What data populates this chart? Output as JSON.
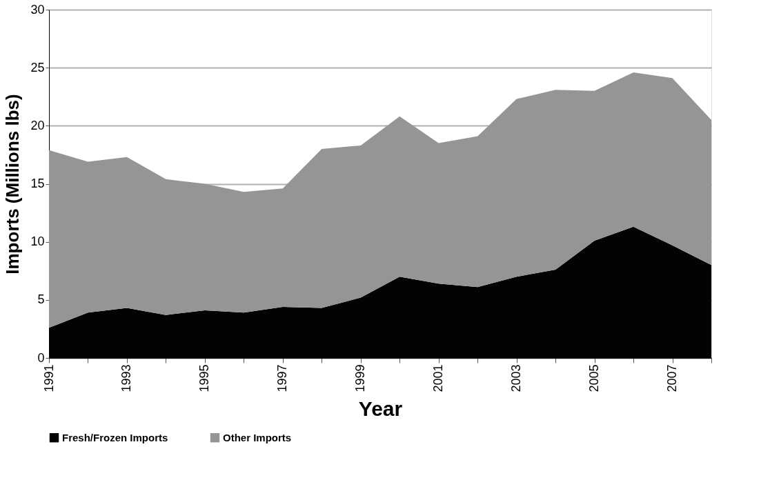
{
  "chart_data": {
    "type": "area",
    "stacked": true,
    "xlabel": "Year",
    "ylabel": "Imports (Millions lbs)",
    "x": [
      1991,
      1992,
      1993,
      1994,
      1995,
      1996,
      1997,
      1998,
      1999,
      2000,
      2001,
      2002,
      2003,
      2004,
      2005,
      2006,
      2007,
      2008
    ],
    "series": [
      {
        "name": "Fresh/Frozen Imports",
        "color": "#030303",
        "values": [
          2.6,
          3.9,
          4.3,
          3.7,
          4.1,
          3.9,
          4.4,
          4.3,
          5.2,
          7.0,
          6.4,
          6.1,
          7.0,
          7.6,
          10.1,
          11.3,
          9.7,
          8.0
        ]
      },
      {
        "name": "Other Imports",
        "color": "#959595",
        "values": [
          15.3,
          13.0,
          13.0,
          11.7,
          10.9,
          10.4,
          10.2,
          13.7,
          13.1,
          13.8,
          12.1,
          13.0,
          15.3,
          15.5,
          12.9,
          13.3,
          14.4,
          12.5
        ]
      }
    ],
    "xlim": [
      1991,
      2008
    ],
    "xticks": [
      1991,
      {
        "value": 1992,
        "label": null
      },
      1993,
      {
        "value": 1994,
        "label": null
      },
      1995,
      {
        "value": 1996,
        "label": null
      },
      1997,
      {
        "value": 1998,
        "label": null
      },
      1999,
      {
        "value": 2000,
        "label": null
      },
      2001,
      {
        "value": 2002,
        "label": null
      },
      2003,
      {
        "value": 2004,
        "label": null
      },
      2005,
      {
        "value": 2006,
        "label": null
      },
      2007,
      {
        "value": 2008,
        "label": null
      }
    ],
    "ylim": [
      0,
      30
    ],
    "yticks": [
      0,
      5,
      10,
      15,
      20,
      25,
      30
    ],
    "grid": "y",
    "legend": "bottom"
  }
}
